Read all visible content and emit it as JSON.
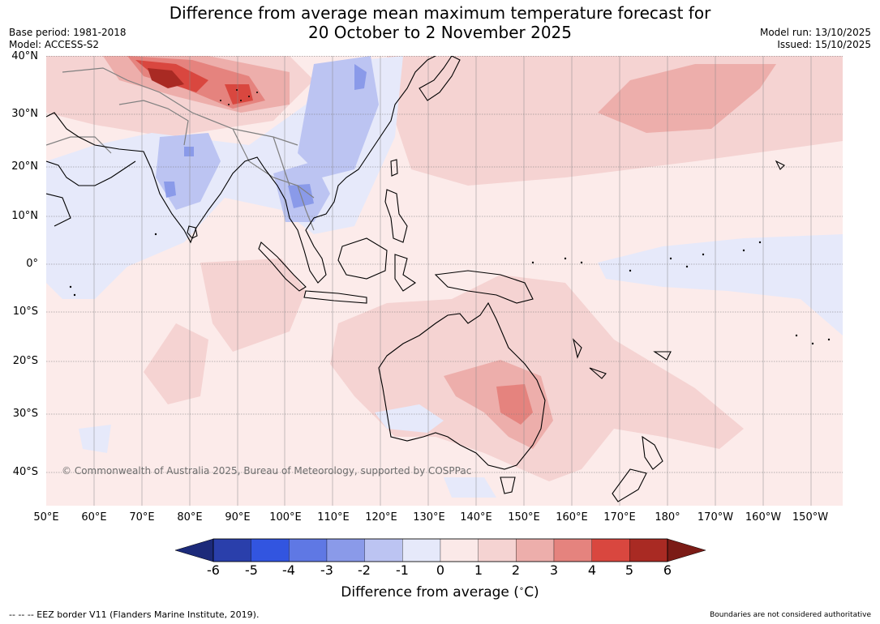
{
  "title_line1": "Difference from average mean maximum temperature forecast for",
  "title_line2": "20 October to 2 November 2025",
  "meta_left": {
    "base_period": "Base period: 1981-2018",
    "model": "Model: ACCESS-S2"
  },
  "meta_right": {
    "model_run": "Model run: 13/10/2025",
    "issued": "Issued: 15/10/2025"
  },
  "map": {
    "longitude_labels": [
      "50°E",
      "60°E",
      "70°E",
      "80°E",
      "90°E",
      "100°E",
      "110°E",
      "120°E",
      "130°E",
      "140°E",
      "150°E",
      "160°E",
      "170°E",
      "180°",
      "170°W",
      "160°W",
      "150°W"
    ],
    "latitude_labels": [
      "40°N",
      "30°N",
      "20°N",
      "10°N",
      "0°",
      "10°S",
      "20°S",
      "30°S",
      "40°S"
    ],
    "copyright": "© Commonwealth of Australia 2025, Bureau of Meteorology, supported by COSPPac"
  },
  "colorbar": {
    "label": "Difference from average (°C)",
    "label_main": "Difference from average (",
    "label_unit": "C)",
    "ticks": [
      "-6",
      "-5",
      "-4",
      "-3",
      "-2",
      "-1",
      "0",
      "1",
      "2",
      "3",
      "4",
      "5",
      "6"
    ],
    "colors": {
      "extend_low": "#1c2a7a",
      "bins": [
        "#2a3fab",
        "#3255e0",
        "#5f78e4",
        "#8a9ae9",
        "#bcc4f2",
        "#e6e9fa",
        "#fbe9e8",
        "#f5d3d2",
        "#edaeab",
        "#e5837e",
        "#d9473f",
        "#a92a23"
      ],
      "extend_high": "#7b1b16",
      "ocean_neutral": "#fcebea",
      "coastline": "#000000",
      "border": "#808080"
    }
  },
  "footer": {
    "eez_note": "--  --  -- EEZ border V11 (Flanders Marine Institute, 2019).",
    "boundary_note": "Boundaries are not considered authoritative"
  }
}
